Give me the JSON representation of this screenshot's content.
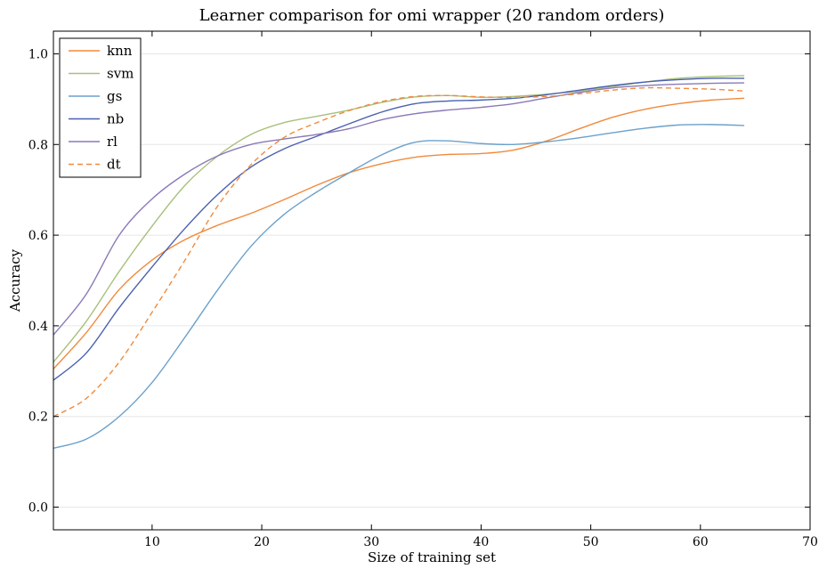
{
  "chart_data": {
    "type": "line",
    "title": "Learner comparison for omi wrapper (20 random orders)",
    "xlabel": "Size of training set",
    "ylabel": "Accuracy",
    "xlim": [
      1,
      70
    ],
    "ylim": [
      -0.05,
      1.05
    ],
    "xticks": [
      10,
      20,
      30,
      40,
      50,
      60,
      70
    ],
    "yticks": [
      0.0,
      0.2,
      0.4,
      0.6,
      0.8,
      1.0
    ],
    "xtick_labels": [
      "10",
      "20",
      "30",
      "40",
      "50",
      "60",
      "70"
    ],
    "ytick_labels": [
      "0.0",
      "0.2",
      "0.4",
      "0.6",
      "0.8",
      "1.0"
    ],
    "grid": "horizontal",
    "legend_position": "top-left",
    "x": [
      1,
      4,
      7,
      10,
      13,
      16,
      19,
      22,
      25,
      28,
      31,
      34,
      37,
      40,
      43,
      46,
      49,
      52,
      55,
      58,
      61,
      64
    ],
    "series": [
      {
        "name": "knn",
        "color": "#f08a3c",
        "dash": false,
        "values": [
          0.305,
          0.385,
          0.48,
          0.545,
          0.59,
          0.622,
          0.648,
          0.678,
          0.71,
          0.738,
          0.758,
          0.772,
          0.778,
          0.78,
          0.788,
          0.808,
          0.835,
          0.86,
          0.878,
          0.89,
          0.898,
          0.902
        ]
      },
      {
        "name": "svm",
        "color": "#a8c07c",
        "dash": false,
        "values": [
          0.32,
          0.41,
          0.52,
          0.62,
          0.71,
          0.775,
          0.822,
          0.848,
          0.862,
          0.876,
          0.893,
          0.905,
          0.908,
          0.904,
          0.906,
          0.911,
          0.918,
          0.928,
          0.938,
          0.946,
          0.95,
          0.952
        ]
      },
      {
        "name": "gs",
        "color": "#6ba1cb",
        "dash": false,
        "values": [
          0.13,
          0.15,
          0.2,
          0.275,
          0.375,
          0.48,
          0.575,
          0.645,
          0.695,
          0.738,
          0.778,
          0.805,
          0.808,
          0.802,
          0.8,
          0.806,
          0.815,
          0.826,
          0.836,
          0.843,
          0.844,
          0.842
        ]
      },
      {
        "name": "nb",
        "color": "#4a60b0",
        "dash": false,
        "values": [
          0.28,
          0.34,
          0.44,
          0.53,
          0.615,
          0.69,
          0.75,
          0.79,
          0.818,
          0.846,
          0.872,
          0.89,
          0.896,
          0.898,
          0.902,
          0.91,
          0.92,
          0.93,
          0.938,
          0.943,
          0.946,
          0.946
        ]
      },
      {
        "name": "rl",
        "color": "#8a79b8",
        "dash": false,
        "values": [
          0.38,
          0.47,
          0.6,
          0.68,
          0.735,
          0.775,
          0.8,
          0.812,
          0.822,
          0.835,
          0.855,
          0.868,
          0.876,
          0.882,
          0.89,
          0.903,
          0.915,
          0.925,
          0.93,
          0.933,
          0.935,
          0.936
        ]
      },
      {
        "name": "dt",
        "color": "#f08a3c",
        "dash": true,
        "values": [
          0.2,
          0.24,
          0.32,
          0.43,
          0.545,
          0.665,
          0.755,
          0.815,
          0.848,
          0.875,
          0.895,
          0.906,
          0.908,
          0.905,
          0.904,
          0.906,
          0.912,
          0.92,
          0.925,
          0.924,
          0.922,
          0.918
        ]
      }
    ]
  }
}
